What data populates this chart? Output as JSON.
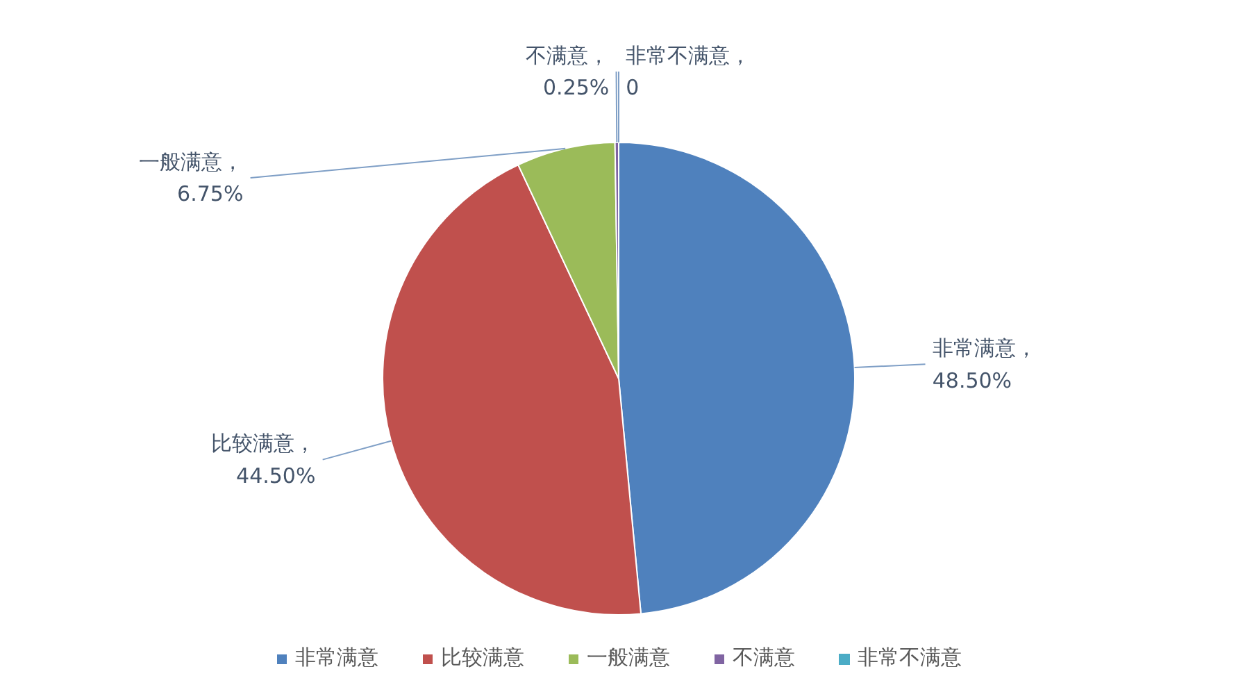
{
  "chart_data": {
    "type": "pie",
    "categories": [
      "非常满意",
      "比较满意",
      "一般满意",
      "不满意",
      "非常不满意"
    ],
    "values": [
      48.5,
      44.5,
      6.75,
      0.25,
      0
    ],
    "value_labels": [
      "非常满意，48.50%",
      "比较满意，44.50%",
      "一般满意，6.75%",
      "不满意，0.25%",
      "非常不满意，0"
    ],
    "colors": [
      "#4f81bd",
      "#c0504d",
      "#9bbb59",
      "#8064a2",
      "#4bacc6"
    ],
    "legend": "bottom"
  }
}
